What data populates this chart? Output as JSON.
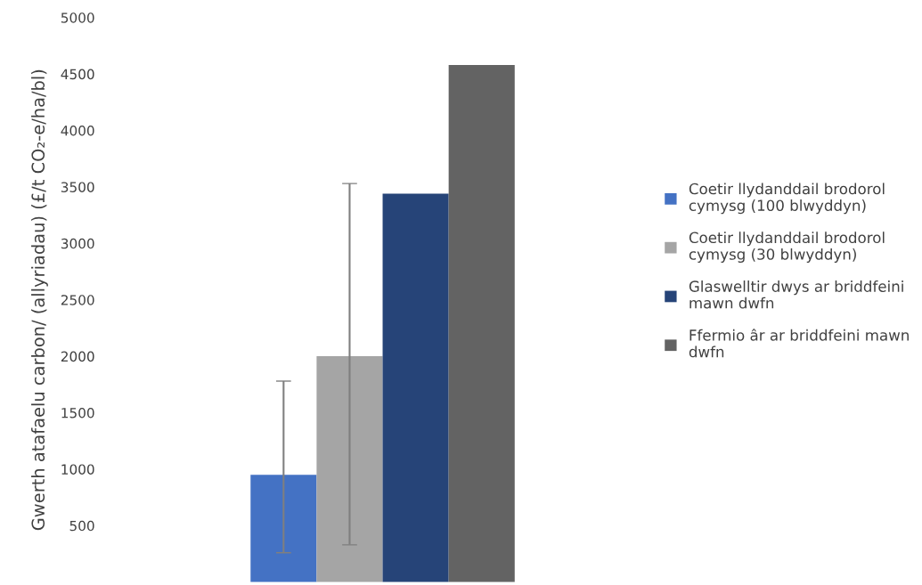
{
  "chart_data": {
    "type": "bar",
    "ylabel": "Gwerth atafaelu carbon/ (allyriadau) (£/t CO₂-e/ha/bl)",
    "categories": [
      null
    ],
    "series": [
      {
        "name": "Coetir llydanddail brodorol\ncymysg (100 blwyddyn)",
        "color": "#4472c4",
        "values": [
          950
        ],
        "errors": [
          [
            260,
            1780
          ]
        ]
      },
      {
        "name": "Coetir llydanddail brodorol\ncymysg (30 blwyddyn)",
        "color": "#a5a5a5",
        "values": [
          2000
        ],
        "errors": [
          [
            330,
            3530
          ]
        ]
      },
      {
        "name": "Glaswelltir dwys ar briddfeini\nmawn dwfn",
        "color": "#264478",
        "values": [
          3440
        ],
        "errors": [
          null
        ]
      },
      {
        "name": "Ffermio âr ar briddfeini mawn\ndwfn",
        "color": "#636363",
        "values": [
          4580
        ],
        "errors": [
          null
        ]
      }
    ],
    "ylim": [
      0,
      5000
    ],
    "yticks": [
      500,
      1000,
      1500,
      2000,
      2500,
      3000,
      3500,
      4000,
      4500,
      5000
    ],
    "grid": false,
    "legend": "right",
    "tick_labels": "y"
  }
}
